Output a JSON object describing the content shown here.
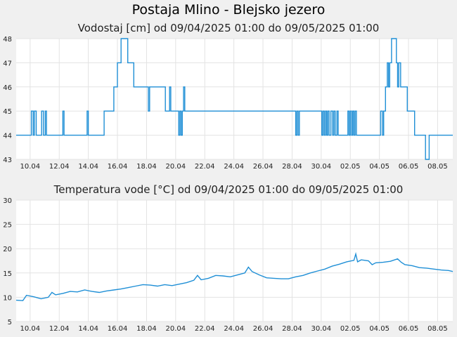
{
  "title": "Postaja Mlino - Blejsko jezero",
  "colors": {
    "line": "#1f8fd6",
    "grid": "#e3e3e3",
    "plot_bg": "#ffffff",
    "page_bg": "#f0f0f0"
  },
  "chart_data": [
    {
      "type": "line",
      "title": "Vodostaj [cm] od 09/04/2025 01:00 do 09/05/2025 01:00",
      "xlabel": "",
      "ylabel": "",
      "ylim": [
        43,
        48
      ],
      "yticks": [
        "43",
        "44",
        "45",
        "46",
        "47",
        "48"
      ],
      "xticks": [
        "10.04",
        "12.04",
        "14.04",
        "16.04",
        "18.04",
        "20.04",
        "22.04",
        "24.04",
        "26.04",
        "28.04",
        "30.04",
        "02.05",
        "04.05",
        "06.05",
        "08.05"
      ],
      "x_start": "09.04.2025 01:00",
      "x_end": "09.05.2025 01:00",
      "grid": true,
      "series": [
        {
          "points": [
            [
              "09.04 01:00",
              44
            ],
            [
              "10.04 00:00",
              44
            ],
            [
              "10.04 02:00",
              45
            ],
            [
              "10.04 05:00",
              44
            ],
            [
              "10.04 07:00",
              45
            ],
            [
              "10.04 10:00",
              44
            ],
            [
              "10.04 16:00",
              44
            ],
            [
              "10.04 19:00",
              45
            ],
            [
              "10.04 22:00",
              44
            ],
            [
              "11.04 01:00",
              45
            ],
            [
              "11.04 03:00",
              44
            ],
            [
              "12.04 04:00",
              44
            ],
            [
              "12.04 06:00",
              45
            ],
            [
              "12.04 08:00",
              44
            ],
            [
              "13.04 20:00",
              44
            ],
            [
              "13.04 22:00",
              45
            ],
            [
              "14.04 00:00",
              44
            ],
            [
              "15.04 00:00",
              44
            ],
            [
              "15.04 02:00",
              45
            ],
            [
              "15.04 14:00",
              45
            ],
            [
              "15.04 18:00",
              46
            ],
            [
              "16.04 00:00",
              47
            ],
            [
              "16.04 06:00",
              48
            ],
            [
              "16.04 15:00",
              48
            ],
            [
              "16.04 17:00",
              47
            ],
            [
              "17.04 01:00",
              47
            ],
            [
              "17.04 03:00",
              46
            ],
            [
              "18.04 00:00",
              46
            ],
            [
              "18.04 03:00",
              45
            ],
            [
              "18.04 05:00",
              46
            ],
            [
              "19.04 06:00",
              46
            ],
            [
              "19.04 07:00",
              45
            ],
            [
              "19.04 12:00",
              45
            ],
            [
              "19.04 14:00",
              46
            ],
            [
              "19.04 16:00",
              45
            ],
            [
              "20.04 03:00",
              45
            ],
            [
              "20.04 05:00",
              44
            ],
            [
              "20.04 07:00",
              45
            ],
            [
              "20.04 09:00",
              44
            ],
            [
              "20.04 11:00",
              45
            ],
            [
              "20.04 13:00",
              46
            ],
            [
              "20.04 15:00",
              45
            ],
            [
              "28.04 04:00",
              45
            ],
            [
              "28.04 06:00",
              44
            ],
            [
              "28.04 08:00",
              45
            ],
            [
              "28.04 10:00",
              44
            ],
            [
              "28.04 12:00",
              45
            ],
            [
              "29.04 23:00",
              45
            ],
            [
              "30.04 01:00",
              44
            ],
            [
              "30.04 03:00",
              45
            ],
            [
              "30.04 05:00",
              44
            ],
            [
              "30.04 07:00",
              45
            ],
            [
              "30.04 09:00",
              44
            ],
            [
              "30.04 11:00",
              45
            ],
            [
              "30.04 13:00",
              44
            ],
            [
              "30.04 16:00",
              45
            ],
            [
              "30.04 19:00",
              44
            ],
            [
              "30.04 21:00",
              45
            ],
            [
              "30.04 23:00",
              44
            ],
            [
              "01.05 02:00",
              45
            ],
            [
              "01.05 04:00",
              44
            ],
            [
              "01.05 18:00",
              44
            ],
            [
              "01.05 20:00",
              45
            ],
            [
              "01.05 22:00",
              44
            ],
            [
              "02.05 00:00",
              45
            ],
            [
              "02.05 02:00",
              44
            ],
            [
              "02.05 04:00",
              45
            ],
            [
              "02.05 06:00",
              44
            ],
            [
              "02.05 08:00",
              45
            ],
            [
              "02.05 10:00",
              44
            ],
            [
              "04.05 00:00",
              44
            ],
            [
              "04.05 02:00",
              45
            ],
            [
              "04.05 05:00",
              44
            ],
            [
              "04.05 07:00",
              45
            ],
            [
              "04.05 10:00",
              46
            ],
            [
              "04.05 13:00",
              47
            ],
            [
              "04.05 15:00",
              46
            ],
            [
              "04.05 17:00",
              47
            ],
            [
              "04.05 20:00",
              48
            ],
            [
              "05.05 02:00",
              48
            ],
            [
              "05.05 04:00",
              47
            ],
            [
              "05.05 06:00",
              46
            ],
            [
              "05.05 08:00",
              47
            ],
            [
              "05.05 11:00",
              46
            ],
            [
              "05.05 20:00",
              46
            ],
            [
              "05.05 22:00",
              45
            ],
            [
              "06.05 08:00",
              45
            ],
            [
              "06.05 10:00",
              44
            ],
            [
              "07.05 02:00",
              44
            ],
            [
              "07.05 04:00",
              43
            ],
            [
              "07.05 08:00",
              43
            ],
            [
              "07.05 10:00",
              44
            ],
            [
              "09.05 01:00",
              44
            ]
          ]
        }
      ]
    },
    {
      "type": "line",
      "title": "Temperatura vode [°C] od 09/04/2025 01:00 do 09/05/2025 01:00",
      "xlabel": "",
      "ylabel": "",
      "ylim": [
        5,
        30
      ],
      "yticks": [
        "5",
        "10",
        "15",
        "20",
        "25",
        "30"
      ],
      "xticks": [
        "10.04",
        "12.04",
        "14.04",
        "16.04",
        "18.04",
        "20.04",
        "22.04",
        "24.04",
        "26.04",
        "28.04",
        "30.04",
        "02.05",
        "04.05",
        "06.05",
        "08.05"
      ],
      "x_start": "09.04.2025 01:00",
      "x_end": "09.05.2025 01:00",
      "grid": true,
      "series": [
        {
          "points": [
            [
              "09.04 01:00",
              9.4
            ],
            [
              "09.04 12:00",
              9.3
            ],
            [
              "09.04 18:00",
              10.4
            ],
            [
              "10.04 06:00",
              10.1
            ],
            [
              "10.04 18:00",
              9.7
            ],
            [
              "11.04 06:00",
              10.0
            ],
            [
              "11.04 12:00",
              11.0
            ],
            [
              "11.04 18:00",
              10.5
            ],
            [
              "12.04 06:00",
              10.8
            ],
            [
              "12.04 18:00",
              11.2
            ],
            [
              "13.04 06:00",
              11.1
            ],
            [
              "13.04 18:00",
              11.5
            ],
            [
              "14.04 06:00",
              11.2
            ],
            [
              "14.04 18:00",
              11.0
            ],
            [
              "15.04 06:00",
              11.3
            ],
            [
              "15.04 18:00",
              11.5
            ],
            [
              "16.04 06:00",
              11.7
            ],
            [
              "16.04 18:00",
              12.0
            ],
            [
              "17.04 06:00",
              12.3
            ],
            [
              "17.04 18:00",
              12.6
            ],
            [
              "18.04 06:00",
              12.5
            ],
            [
              "18.04 18:00",
              12.3
            ],
            [
              "19.04 06:00",
              12.6
            ],
            [
              "19.04 18:00",
              12.4
            ],
            [
              "20.04 06:00",
              12.7
            ],
            [
              "20.04 18:00",
              13.0
            ],
            [
              "21.04 06:00",
              13.5
            ],
            [
              "21.04 12:00",
              14.5
            ],
            [
              "21.04 18:00",
              13.6
            ],
            [
              "22.04 06:00",
              13.9
            ],
            [
              "22.04 18:00",
              14.5
            ],
            [
              "23.04 06:00",
              14.4
            ],
            [
              "23.04 18:00",
              14.2
            ],
            [
              "24.04 06:00",
              14.6
            ],
            [
              "24.04 18:00",
              15.0
            ],
            [
              "25.04 00:00",
              16.2
            ],
            [
              "25.04 06:00",
              15.3
            ],
            [
              "25.04 18:00",
              14.6
            ],
            [
              "26.04 06:00",
              14.0
            ],
            [
              "26.04 18:00",
              13.9
            ],
            [
              "27.04 06:00",
              13.8
            ],
            [
              "27.04 18:00",
              13.8
            ],
            [
              "28.04 06:00",
              14.2
            ],
            [
              "28.04 18:00",
              14.5
            ],
            [
              "29.04 06:00",
              15.0
            ],
            [
              "29.04 18:00",
              15.4
            ],
            [
              "30.04 06:00",
              15.8
            ],
            [
              "30.04 18:00",
              16.4
            ],
            [
              "01.05 06:00",
              16.8
            ],
            [
              "01.05 18:00",
              17.3
            ],
            [
              "02.05 06:00",
              17.6
            ],
            [
              "02.05 09:00",
              18.9
            ],
            [
              "02.05 12:00",
              17.3
            ],
            [
              "02.05 18:00",
              17.7
            ],
            [
              "03.05 06:00",
              17.5
            ],
            [
              "03.05 12:00",
              16.7
            ],
            [
              "03.05 18:00",
              17.1
            ],
            [
              "04.05 06:00",
              17.2
            ],
            [
              "04.05 18:00",
              17.4
            ],
            [
              "05.05 06:00",
              17.9
            ],
            [
              "05.05 12:00",
              17.2
            ],
            [
              "05.05 18:00",
              16.7
            ],
            [
              "06.05 06:00",
              16.5
            ],
            [
              "06.05 18:00",
              16.1
            ],
            [
              "07.05 06:00",
              16.0
            ],
            [
              "07.05 18:00",
              15.8
            ],
            [
              "08.05 06:00",
              15.6
            ],
            [
              "08.05 18:00",
              15.5
            ],
            [
              "09.05 01:00",
              15.3
            ]
          ]
        }
      ]
    }
  ]
}
